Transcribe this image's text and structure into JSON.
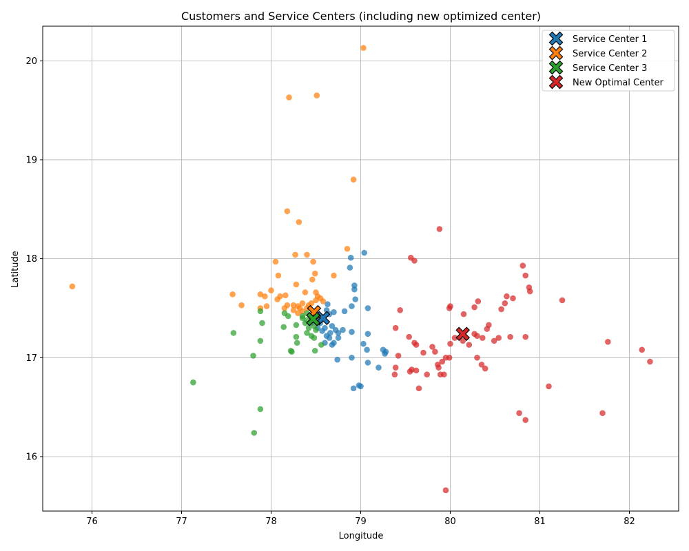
{
  "chart_data": {
    "type": "scatter",
    "title": "Customers and Service Centers (including new optimized center)",
    "xlabel": "Longitude",
    "ylabel": "Latitude",
    "xlim": [
      75.45,
      82.55
    ],
    "ylim": [
      15.45,
      20.35
    ],
    "xticks": [
      76,
      77,
      78,
      79,
      80,
      81,
      82
    ],
    "yticks": [
      16,
      17,
      18,
      19,
      20
    ],
    "grid": true,
    "legend_position": "top-right",
    "colors": {
      "blue": "#1f77b4",
      "orange": "#ff7f0e",
      "green": "#2ca02c",
      "red": "#d62728"
    },
    "series": [
      {
        "color": "#1f77b4",
        "points": [
          [
            78.58,
            17.4
          ],
          [
            78.62,
            17.48
          ],
          [
            78.65,
            17.44
          ],
          [
            78.7,
            17.46
          ],
          [
            78.55,
            17.35
          ],
          [
            78.6,
            17.3
          ],
          [
            78.68,
            17.32
          ],
          [
            78.72,
            17.28
          ],
          [
            78.62,
            17.22
          ],
          [
            78.66,
            17.25
          ],
          [
            78.75,
            17.25
          ],
          [
            78.8,
            17.28
          ],
          [
            78.65,
            17.2
          ],
          [
            78.7,
            17.15
          ],
          [
            78.75,
            17.2
          ],
          [
            78.6,
            17.15
          ],
          [
            78.68,
            17.13
          ],
          [
            78.82,
            17.47
          ],
          [
            78.63,
            17.54
          ],
          [
            78.9,
            17.26
          ],
          [
            78.9,
            17.52
          ],
          [
            78.94,
            17.59
          ],
          [
            78.93,
            17.69
          ],
          [
            78.93,
            17.73
          ],
          [
            78.88,
            17.91
          ],
          [
            78.89,
            18.01
          ],
          [
            79.04,
            18.06
          ],
          [
            79.08,
            17.5
          ],
          [
            79.08,
            17.24
          ],
          [
            79.03,
            17.14
          ],
          [
            79.07,
            17.08
          ],
          [
            79.08,
            16.95
          ],
          [
            78.9,
            17.0
          ],
          [
            78.74,
            16.98
          ],
          [
            79.2,
            16.9
          ],
          [
            79.25,
            17.08
          ],
          [
            79.28,
            17.06
          ],
          [
            79.27,
            17.04
          ],
          [
            79.0,
            16.71
          ],
          [
            78.98,
            16.72
          ],
          [
            78.92,
            16.69
          ],
          [
            78.55,
            17.42
          ],
          [
            78.5,
            17.38
          ],
          [
            78.45,
            17.35
          ],
          [
            78.52,
            17.3
          ],
          [
            78.57,
            17.27
          ]
        ]
      },
      {
        "color": "#ff7f0e",
        "points": [
          [
            79.03,
            20.13
          ],
          [
            78.2,
            19.63
          ],
          [
            78.51,
            19.65
          ],
          [
            78.92,
            18.8
          ],
          [
            78.18,
            18.48
          ],
          [
            78.31,
            18.37
          ],
          [
            78.85,
            18.1
          ],
          [
            78.27,
            18.04
          ],
          [
            78.4,
            18.04
          ],
          [
            78.05,
            17.97
          ],
          [
            78.47,
            17.97
          ],
          [
            78.08,
            17.83
          ],
          [
            78.49,
            17.85
          ],
          [
            78.7,
            17.83
          ],
          [
            78.46,
            17.79
          ],
          [
            78.28,
            17.74
          ],
          [
            77.57,
            17.64
          ],
          [
            77.88,
            17.64
          ],
          [
            77.93,
            17.62
          ],
          [
            78.1,
            17.62
          ],
          [
            78.16,
            17.63
          ],
          [
            78.0,
            17.68
          ],
          [
            78.07,
            17.59
          ],
          [
            78.15,
            17.5
          ],
          [
            78.18,
            17.53
          ],
          [
            77.95,
            17.52
          ],
          [
            77.67,
            17.53
          ],
          [
            77.88,
            17.5
          ],
          [
            78.25,
            17.53
          ],
          [
            78.25,
            17.48
          ],
          [
            78.3,
            17.45
          ],
          [
            78.35,
            17.47
          ],
          [
            78.4,
            17.5
          ],
          [
            78.42,
            17.53
          ],
          [
            78.45,
            17.55
          ],
          [
            78.5,
            17.58
          ],
          [
            78.55,
            17.6
          ],
          [
            78.58,
            17.57
          ],
          [
            78.52,
            17.62
          ],
          [
            78.5,
            17.66
          ],
          [
            78.38,
            17.66
          ],
          [
            78.3,
            17.52
          ],
          [
            78.35,
            17.55
          ],
          [
            75.78,
            17.72
          ],
          [
            78.32,
            17.5
          ]
        ]
      },
      {
        "color": "#2ca02c",
        "points": [
          [
            78.45,
            17.4
          ],
          [
            78.4,
            17.38
          ],
          [
            78.35,
            17.42
          ],
          [
            78.38,
            17.35
          ],
          [
            78.42,
            17.3
          ],
          [
            78.48,
            17.32
          ],
          [
            78.5,
            17.28
          ],
          [
            78.4,
            17.25
          ],
          [
            78.45,
            17.22
          ],
          [
            78.48,
            17.2
          ],
          [
            78.28,
            17.33
          ],
          [
            78.28,
            17.21
          ],
          [
            78.29,
            17.15
          ],
          [
            78.19,
            17.42
          ],
          [
            78.15,
            17.45
          ],
          [
            77.88,
            17.47
          ],
          [
            77.9,
            17.35
          ],
          [
            78.14,
            17.31
          ],
          [
            78.22,
            17.07
          ],
          [
            78.23,
            17.06
          ],
          [
            77.8,
            17.02
          ],
          [
            78.49,
            17.07
          ],
          [
            78.56,
            17.13
          ],
          [
            77.58,
            17.25
          ],
          [
            77.88,
            17.17
          ],
          [
            77.13,
            16.75
          ],
          [
            77.88,
            16.48
          ],
          [
            77.81,
            16.24
          ],
          [
            78.4,
            17.45
          ],
          [
            78.52,
            17.35
          ],
          [
            78.35,
            17.4
          ]
        ]
      },
      {
        "color": "#d62728",
        "points": [
          [
            79.88,
            18.3
          ],
          [
            79.56,
            18.01
          ],
          [
            79.6,
            17.98
          ],
          [
            80.81,
            17.93
          ],
          [
            80.84,
            17.83
          ],
          [
            80.88,
            17.71
          ],
          [
            80.89,
            17.67
          ],
          [
            81.25,
            17.58
          ],
          [
            80.31,
            17.57
          ],
          [
            80.61,
            17.55
          ],
          [
            80.63,
            17.62
          ],
          [
            80.7,
            17.6
          ],
          [
            80.57,
            17.49
          ],
          [
            80.27,
            17.51
          ],
          [
            80.0,
            17.52
          ],
          [
            79.99,
            17.5
          ],
          [
            79.44,
            17.48
          ],
          [
            80.15,
            17.44
          ],
          [
            80.43,
            17.33
          ],
          [
            80.41,
            17.29
          ],
          [
            79.39,
            17.3
          ],
          [
            80.27,
            17.24
          ],
          [
            80.3,
            17.22
          ],
          [
            80.36,
            17.2
          ],
          [
            80.54,
            17.2
          ],
          [
            80.49,
            17.17
          ],
          [
            80.67,
            17.21
          ],
          [
            80.84,
            17.21
          ],
          [
            81.76,
            17.16
          ],
          [
            79.54,
            17.21
          ],
          [
            79.6,
            17.15
          ],
          [
            79.62,
            17.13
          ],
          [
            79.8,
            17.11
          ],
          [
            80.0,
            17.14
          ],
          [
            80.14,
            17.17
          ],
          [
            80.21,
            17.13
          ],
          [
            79.83,
            17.06
          ],
          [
            79.42,
            17.02
          ],
          [
            79.95,
            17.0
          ],
          [
            79.99,
            17.0
          ],
          [
            80.3,
            17.0
          ],
          [
            79.91,
            16.96
          ],
          [
            79.86,
            16.93
          ],
          [
            79.87,
            16.9
          ],
          [
            79.57,
            16.88
          ],
          [
            79.55,
            16.86
          ],
          [
            79.62,
            16.87
          ],
          [
            79.39,
            16.9
          ],
          [
            79.38,
            16.83
          ],
          [
            79.74,
            16.83
          ],
          [
            79.89,
            16.83
          ],
          [
            79.93,
            16.83
          ],
          [
            80.35,
            16.93
          ],
          [
            80.39,
            16.89
          ],
          [
            81.1,
            16.71
          ],
          [
            79.65,
            16.69
          ],
          [
            80.77,
            16.44
          ],
          [
            80.84,
            16.37
          ],
          [
            81.7,
            16.44
          ],
          [
            82.14,
            17.08
          ],
          [
            82.23,
            16.96
          ],
          [
            79.95,
            15.66
          ],
          [
            80.05,
            17.2
          ],
          [
            79.7,
            17.05
          ]
        ]
      }
    ],
    "centers": [
      {
        "name": "Service Center 1",
        "color": "#1f77b4",
        "x": 78.58,
        "y": 17.4
      },
      {
        "name": "Service Center 2",
        "color": "#ff7f0e",
        "x": 78.48,
        "y": 17.46
      },
      {
        "name": "Service Center 3",
        "color": "#2ca02c",
        "x": 78.47,
        "y": 17.39
      },
      {
        "name": "New Optimal Center",
        "color": "#d62728",
        "x": 80.14,
        "y": 17.24
      }
    ]
  }
}
